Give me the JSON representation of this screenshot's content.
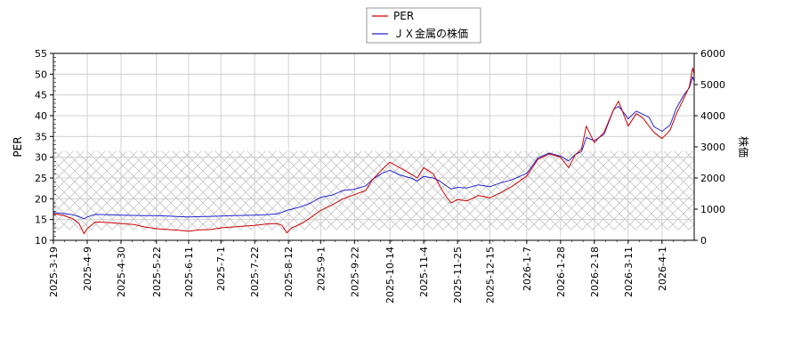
{
  "chart_data": {
    "type": "line",
    "title": "",
    "xlabel": "",
    "ylabel_left": "PER",
    "ylabel_right": "株価",
    "ylim_left": [
      10,
      55
    ],
    "ylim_right": [
      0,
      6000
    ],
    "yticks_left": [
      10,
      15,
      20,
      25,
      30,
      35,
      40,
      45,
      50,
      55
    ],
    "yticks_right": [
      0,
      1000,
      2000,
      3000,
      4000,
      5000,
      6000
    ],
    "xlim": [
      "2025-03-19",
      "2026-04-21"
    ],
    "xticks": [
      "2025-3-19",
      "2025-4-9",
      "2025-4-30",
      "2025-5-22",
      "2025-6-11",
      "2025-7-1",
      "2025-7-22",
      "2025-8-12",
      "2025-9-1",
      "2025-9-22",
      "2025-10-14",
      "2025-11-4",
      "2025-11-25",
      "2025-12-15",
      "2026-1-7",
      "2026-1-28",
      "2026-2-18",
      "2026-3-11",
      "2026-4-1"
    ],
    "grid": true,
    "legend_position": "top-center",
    "hatched_band_left": [
      12.5,
      31.5
    ],
    "series": [
      {
        "name": "PER",
        "axis": "left",
        "color": "#cc0000",
        "points": [
          [
            "2025-03-19",
            16.4
          ],
          [
            "2025-03-25",
            16.0
          ],
          [
            "2025-03-31",
            15.2
          ],
          [
            "2025-04-04",
            14.0
          ],
          [
            "2025-04-07",
            11.6
          ],
          [
            "2025-04-09",
            12.8
          ],
          [
            "2025-04-14",
            14.4
          ],
          [
            "2025-04-21",
            14.3
          ],
          [
            "2025-04-30",
            14.0
          ],
          [
            "2025-05-08",
            13.8
          ],
          [
            "2025-05-15",
            13.2
          ],
          [
            "2025-05-22",
            12.8
          ],
          [
            "2025-05-29",
            12.6
          ],
          [
            "2025-06-05",
            12.4
          ],
          [
            "2025-06-11",
            12.2
          ],
          [
            "2025-06-18",
            12.5
          ],
          [
            "2025-06-25",
            12.6
          ],
          [
            "2025-07-01",
            13.0
          ],
          [
            "2025-07-08",
            13.2
          ],
          [
            "2025-07-15",
            13.4
          ],
          [
            "2025-07-22",
            13.6
          ],
          [
            "2025-07-29",
            13.9
          ],
          [
            "2025-08-05",
            14.0
          ],
          [
            "2025-08-08",
            13.6
          ],
          [
            "2025-08-11",
            11.8
          ],
          [
            "2025-08-14",
            13.0
          ],
          [
            "2025-08-20",
            14.0
          ],
          [
            "2025-08-26",
            15.5
          ],
          [
            "2025-09-01",
            17.2
          ],
          [
            "2025-09-08",
            18.5
          ],
          [
            "2025-09-15",
            20.0
          ],
          [
            "2025-09-22",
            21.0
          ],
          [
            "2025-09-29",
            22.0
          ],
          [
            "2025-10-03",
            24.5
          ],
          [
            "2025-10-09",
            27.0
          ],
          [
            "2025-10-14",
            28.8
          ],
          [
            "2025-10-20",
            27.5
          ],
          [
            "2025-10-27",
            26.0
          ],
          [
            "2025-10-31",
            25.0
          ],
          [
            "2025-11-04",
            27.5
          ],
          [
            "2025-11-10",
            26.0
          ],
          [
            "2025-11-14",
            23.0
          ],
          [
            "2025-11-18",
            20.5
          ],
          [
            "2025-11-21",
            19.0
          ],
          [
            "2025-11-25",
            19.8
          ],
          [
            "2025-12-01",
            19.5
          ],
          [
            "2025-12-08",
            20.8
          ],
          [
            "2025-12-15",
            20.2
          ],
          [
            "2025-12-22",
            21.5
          ],
          [
            "2025-12-29",
            23.0
          ],
          [
            "2026-01-07",
            25.5
          ],
          [
            "2026-01-14",
            29.5
          ],
          [
            "2026-01-21",
            30.8
          ],
          [
            "2026-01-28",
            30.0
          ],
          [
            "2026-02-02",
            27.5
          ],
          [
            "2026-02-06",
            30.5
          ],
          [
            "2026-02-10",
            32.0
          ],
          [
            "2026-02-13",
            37.5
          ],
          [
            "2026-02-18",
            33.5
          ],
          [
            "2026-02-24",
            36.0
          ],
          [
            "2026-03-02",
            41.5
          ],
          [
            "2026-03-05",
            43.5
          ],
          [
            "2026-03-09",
            39.5
          ],
          [
            "2026-03-11",
            37.5
          ],
          [
            "2026-03-16",
            40.5
          ],
          [
            "2026-03-20",
            39.5
          ],
          [
            "2026-03-24",
            37.5
          ],
          [
            "2026-03-27",
            36.0
          ],
          [
            "2026-04-01",
            34.5
          ],
          [
            "2026-04-06",
            36.5
          ],
          [
            "2026-04-10",
            40.5
          ],
          [
            "2026-04-15",
            44.5
          ],
          [
            "2026-04-18",
            47.0
          ],
          [
            "2026-04-20",
            51.5
          ],
          [
            "2026-04-21",
            50.0
          ]
        ]
      },
      {
        "name": "ＪＸ金属の株価",
        "axis": "right",
        "color": "#2222cc",
        "points": [
          [
            "2025-03-19",
            890
          ],
          [
            "2025-03-25",
            860
          ],
          [
            "2025-03-31",
            820
          ],
          [
            "2025-04-04",
            760
          ],
          [
            "2025-04-07",
            690
          ],
          [
            "2025-04-09",
            750
          ],
          [
            "2025-04-14",
            830
          ],
          [
            "2025-04-21",
            820
          ],
          [
            "2025-04-30",
            810
          ],
          [
            "2025-05-08",
            800
          ],
          [
            "2025-05-15",
            790
          ],
          [
            "2025-05-22",
            790
          ],
          [
            "2025-05-29",
            780
          ],
          [
            "2025-06-05",
            760
          ],
          [
            "2025-06-11",
            750
          ],
          [
            "2025-06-18",
            760
          ],
          [
            "2025-06-25",
            770
          ],
          [
            "2025-07-01",
            780
          ],
          [
            "2025-07-08",
            790
          ],
          [
            "2025-07-15",
            800
          ],
          [
            "2025-07-22",
            810
          ],
          [
            "2025-07-29",
            820
          ],
          [
            "2025-08-05",
            850
          ],
          [
            "2025-08-08",
            900
          ],
          [
            "2025-08-11",
            960
          ],
          [
            "2025-08-14",
            1000
          ],
          [
            "2025-08-20",
            1080
          ],
          [
            "2025-08-26",
            1200
          ],
          [
            "2025-09-01",
            1380
          ],
          [
            "2025-09-08",
            1450
          ],
          [
            "2025-09-15",
            1600
          ],
          [
            "2025-09-22",
            1640
          ],
          [
            "2025-09-29",
            1750
          ],
          [
            "2025-10-03",
            1950
          ],
          [
            "2025-10-09",
            2150
          ],
          [
            "2025-10-14",
            2250
          ],
          [
            "2025-10-20",
            2100
          ],
          [
            "2025-10-27",
            2000
          ],
          [
            "2025-10-31",
            1900
          ],
          [
            "2025-11-04",
            2050
          ],
          [
            "2025-11-10",
            2000
          ],
          [
            "2025-11-14",
            1900
          ],
          [
            "2025-11-18",
            1750
          ],
          [
            "2025-11-21",
            1650
          ],
          [
            "2025-11-25",
            1700
          ],
          [
            "2025-12-01",
            1680
          ],
          [
            "2025-12-08",
            1780
          ],
          [
            "2025-12-15",
            1720
          ],
          [
            "2025-12-22",
            1850
          ],
          [
            "2025-12-29",
            1950
          ],
          [
            "2026-01-07",
            2150
          ],
          [
            "2026-01-14",
            2650
          ],
          [
            "2026-01-21",
            2800
          ],
          [
            "2026-01-28",
            2700
          ],
          [
            "2026-02-02",
            2550
          ],
          [
            "2026-02-06",
            2750
          ],
          [
            "2026-02-10",
            2850
          ],
          [
            "2026-02-13",
            3300
          ],
          [
            "2026-02-18",
            3200
          ],
          [
            "2026-02-24",
            3400
          ],
          [
            "2026-03-02",
            4200
          ],
          [
            "2026-03-05",
            4300
          ],
          [
            "2026-03-09",
            4050
          ],
          [
            "2026-03-11",
            3900
          ],
          [
            "2026-03-16",
            4150
          ],
          [
            "2026-03-20",
            4050
          ],
          [
            "2026-03-24",
            3950
          ],
          [
            "2026-03-27",
            3650
          ],
          [
            "2026-04-01",
            3500
          ],
          [
            "2026-04-06",
            3700
          ],
          [
            "2026-04-10",
            4250
          ],
          [
            "2026-04-15",
            4700
          ],
          [
            "2026-04-18",
            4900
          ],
          [
            "2026-04-20",
            5250
          ],
          [
            "2026-04-21",
            5100
          ]
        ]
      }
    ]
  }
}
